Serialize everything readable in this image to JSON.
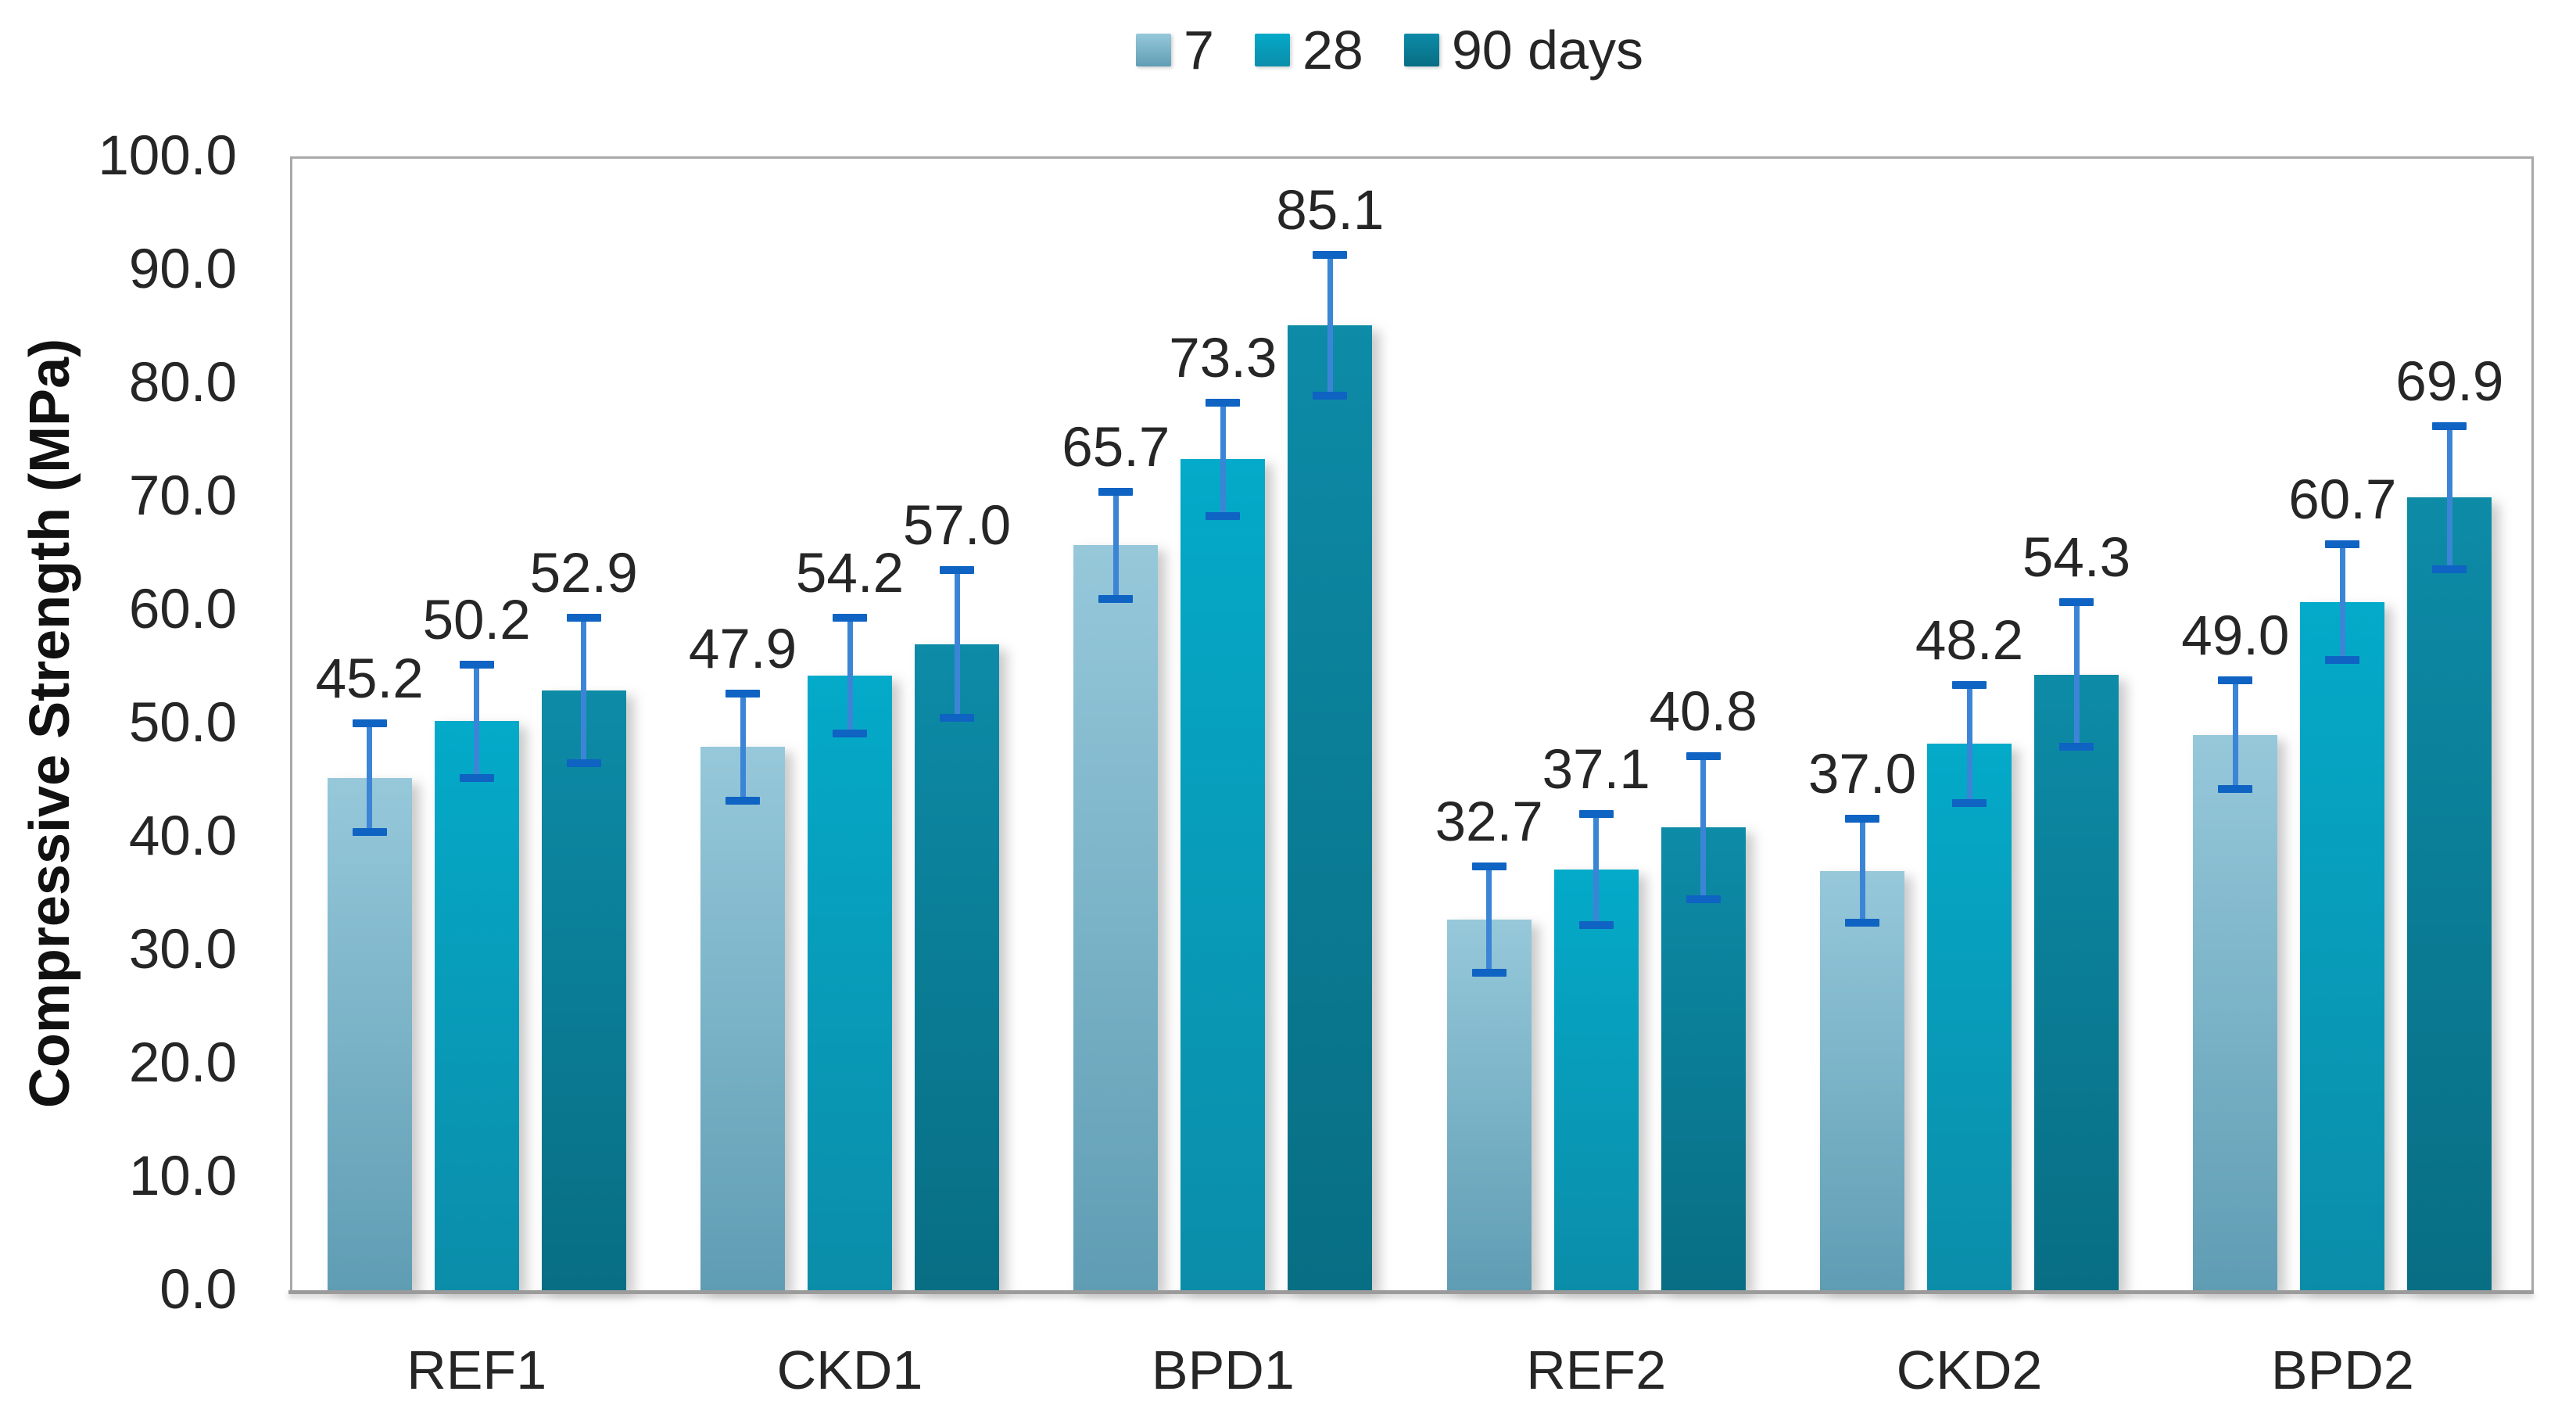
{
  "chart_data": {
    "type": "bar",
    "title": "",
    "xlabel": "",
    "ylabel": "Compressive Strength (MPa)",
    "ylim": [
      0,
      100
    ],
    "ytick_step": 10,
    "ytick_decimals": 1,
    "grid": false,
    "legend_position": "top-center",
    "categories": [
      "REF1",
      "CKD1",
      "BPD1",
      "REF2",
      "CKD2",
      "BPD2"
    ],
    "series": [
      {
        "name": "7",
        "color_top": "#96c8da",
        "color_bottom": "#5f9db4",
        "values": [
          45.2,
          47.9,
          65.7,
          32.7,
          37.0,
          49.0
        ],
        "errors": [
          4.8,
          4.7,
          4.7,
          4.7,
          4.6,
          4.8
        ]
      },
      {
        "name": "28",
        "color_top": "#04aac9",
        "color_bottom": "#0b8da9",
        "values": [
          50.2,
          54.2,
          73.3,
          37.1,
          48.2,
          60.7
        ],
        "errors": [
          5.0,
          5.1,
          5.0,
          4.9,
          5.2,
          5.1
        ]
      },
      {
        "name": "90 days",
        "color_top": "#0d8ba7",
        "color_bottom": "#086e84",
        "values": [
          52.9,
          57.0,
          85.1,
          40.8,
          54.3,
          69.9
        ],
        "errors": [
          6.4,
          6.5,
          6.2,
          6.3,
          6.4,
          6.3
        ]
      }
    ],
    "data_label_decimals": 1,
    "colors": {
      "error_bar_cap": "#0f63c2",
      "error_bar_line": "#3c85d6",
      "plot_border": "#a9a9a9",
      "axis_line": "#9b9b9b",
      "text": "#262626"
    }
  }
}
